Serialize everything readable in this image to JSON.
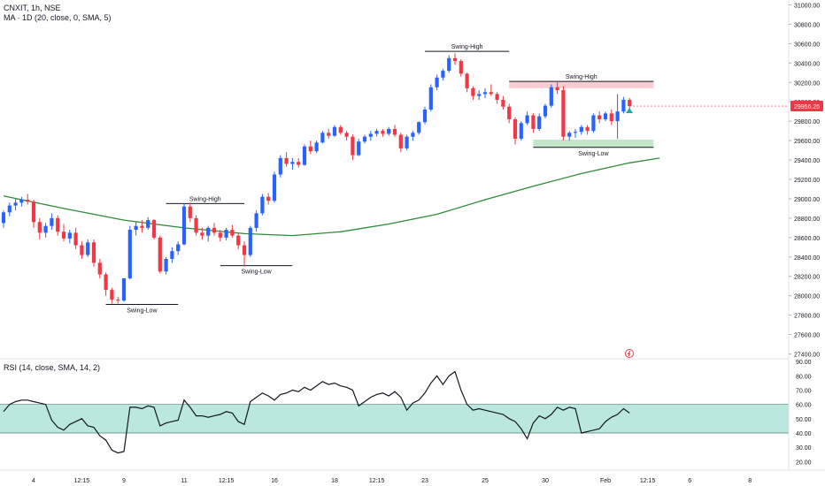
{
  "header": {
    "symbol_line": "CNXIT, 1h, NSE",
    "ma_line": "MA · 1D (20, close, 0, SMA, 5)",
    "rsi_line": "RSI (14, close, SMA, 14, 2)"
  },
  "colors": {
    "up": "#2962ff",
    "down": "#f23645",
    "ma": "#2e8b3a",
    "rsi_band": "#b2e6dc",
    "last_price_bg": "#f23645",
    "resistance_zone": "#f7c6cc",
    "support_zone": "#bfe3c4"
  },
  "chart_data": [
    {
      "type": "candlestick",
      "title": "",
      "ylim": [
        27350,
        31050
      ],
      "y_ticks": [
        "31000.00",
        "30800.00",
        "30600.00",
        "30400.00",
        "30200.00",
        "30000.00",
        "29800.00",
        "29600.00",
        "29400.00",
        "29200.00",
        "29000.00",
        "28800.00",
        "28600.00",
        "28400.00",
        "28200.00",
        "28000.00",
        "27800.00",
        "27600.00",
        "27400.00"
      ],
      "x_ticks": [
        {
          "label": "4",
          "i": 5
        },
        {
          "label": "12:15",
          "i": 13
        },
        {
          "label": "9",
          "i": 20
        },
        {
          "label": "11",
          "i": 30
        },
        {
          "label": "12:15",
          "i": 37
        },
        {
          "label": "16",
          "i": 45
        },
        {
          "label": "18",
          "i": 55
        },
        {
          "label": "12:15",
          "i": 62
        },
        {
          "label": "23",
          "i": 70
        },
        {
          "label": "25",
          "i": 80
        },
        {
          "label": "30",
          "i": 90
        },
        {
          "label": "Feb",
          "i": 100
        },
        {
          "label": "12:15",
          "i": 107
        },
        {
          "label": "6",
          "i": 114
        },
        {
          "label": "8",
          "i": 124
        }
      ],
      "last_price": "29956.25",
      "candles": [
        [
          28750,
          28880,
          28700,
          28860
        ],
        [
          28860,
          28960,
          28820,
          28930
        ],
        [
          28930,
          29000,
          28880,
          28960
        ],
        [
          28960,
          29020,
          28920,
          28990
        ],
        [
          28990,
          29050,
          28940,
          28970
        ],
        [
          28970,
          28990,
          28700,
          28760
        ],
        [
          28760,
          28800,
          28580,
          28650
        ],
        [
          28650,
          28750,
          28600,
          28720
        ],
        [
          28720,
          28850,
          28680,
          28800
        ],
        [
          28800,
          28830,
          28620,
          28660
        ],
        [
          28660,
          28740,
          28560,
          28590
        ],
        [
          28590,
          28680,
          28540,
          28650
        ],
        [
          28650,
          28700,
          28480,
          28520
        ],
        [
          28520,
          28560,
          28380,
          28420
        ],
        [
          28420,
          28580,
          28400,
          28550
        ],
        [
          28550,
          28580,
          28300,
          28340
        ],
        [
          28340,
          28380,
          28180,
          28220
        ],
        [
          28220,
          28240,
          28000,
          28060
        ],
        [
          28060,
          28080,
          27920,
          27960
        ],
        [
          27960,
          27990,
          27920,
          27950
        ],
        [
          27950,
          28180,
          27940,
          28180
        ],
        [
          28180,
          28720,
          28170,
          28680
        ],
        [
          28680,
          28760,
          28620,
          28720
        ],
        [
          28720,
          28780,
          28650,
          28700
        ],
        [
          28700,
          28810,
          28680,
          28780
        ],
        [
          28780,
          28790,
          28580,
          28600
        ],
        [
          28600,
          28620,
          28230,
          28250
        ],
        [
          28250,
          28400,
          28220,
          28380
        ],
        [
          28380,
          28500,
          28340,
          28460
        ],
        [
          28460,
          28560,
          28420,
          28530
        ],
        [
          28530,
          28950,
          28520,
          28920
        ],
        [
          28920,
          28960,
          28760,
          28800
        ],
        [
          28800,
          28830,
          28620,
          28650
        ],
        [
          28650,
          28700,
          28580,
          28620
        ],
        [
          28620,
          28720,
          28560,
          28700
        ],
        [
          28700,
          28750,
          28620,
          28650
        ],
        [
          28650,
          28680,
          28560,
          28600
        ],
        [
          28600,
          28700,
          28570,
          28680
        ],
        [
          28680,
          28730,
          28600,
          28620
        ],
        [
          28620,
          28650,
          28480,
          28520
        ],
        [
          28520,
          28560,
          28300,
          28420
        ],
        [
          28420,
          28720,
          28400,
          28700
        ],
        [
          28700,
          28880,
          28660,
          28850
        ],
        [
          28850,
          29050,
          28830,
          29020
        ],
        [
          29020,
          29060,
          28940,
          28980
        ],
        [
          28980,
          29280,
          28960,
          29250
        ],
        [
          29250,
          29450,
          29220,
          29420
        ],
        [
          29420,
          29480,
          29330,
          29360
        ],
        [
          29360,
          29420,
          29300,
          29380
        ],
        [
          29380,
          29420,
          29320,
          29350
        ],
        [
          29350,
          29560,
          29340,
          29540
        ],
        [
          29540,
          29600,
          29460,
          29490
        ],
        [
          29490,
          29600,
          29470,
          29580
        ],
        [
          29580,
          29700,
          29570,
          29680
        ],
        [
          29680,
          29720,
          29620,
          29650
        ],
        [
          29650,
          29760,
          29640,
          29740
        ],
        [
          29740,
          29760,
          29660,
          29680
        ],
        [
          29680,
          29700,
          29600,
          29640
        ],
        [
          29640,
          29660,
          29400,
          29450
        ],
        [
          29450,
          29620,
          29440,
          29590
        ],
        [
          29590,
          29660,
          29570,
          29640
        ],
        [
          29640,
          29700,
          29600,
          29670
        ],
        [
          29670,
          29720,
          29640,
          29700
        ],
        [
          29700,
          29720,
          29640,
          29670
        ],
        [
          29670,
          29740,
          29650,
          29720
        ],
        [
          29720,
          29760,
          29640,
          29660
        ],
        [
          29660,
          29680,
          29480,
          29520
        ],
        [
          29520,
          29660,
          29500,
          29640
        ],
        [
          29640,
          29700,
          29600,
          29680
        ],
        [
          29680,
          29800,
          29660,
          29790
        ],
        [
          29790,
          29950,
          29770,
          29920
        ],
        [
          29920,
          30180,
          29900,
          30150
        ],
        [
          30150,
          30280,
          30120,
          30250
        ],
        [
          30250,
          30340,
          30220,
          30320
        ],
        [
          30320,
          30480,
          30300,
          30450
        ],
        [
          30450,
          30500,
          30380,
          30420
        ],
        [
          30420,
          30440,
          30260,
          30290
        ],
        [
          30290,
          30300,
          30100,
          30140
        ],
        [
          30140,
          30160,
          30020,
          30060
        ],
        [
          30060,
          30120,
          30020,
          30080
        ],
        [
          30080,
          30140,
          30040,
          30100
        ],
        [
          30100,
          30180,
          30060,
          30080
        ],
        [
          30080,
          30100,
          29980,
          30020
        ],
        [
          30020,
          30060,
          29920,
          29950
        ],
        [
          29950,
          29980,
          29780,
          29820
        ],
        [
          29820,
          29840,
          29560,
          29620
        ],
        [
          29620,
          29800,
          29600,
          29780
        ],
        [
          29780,
          29900,
          29760,
          29860
        ],
        [
          29860,
          29880,
          29680,
          29720
        ],
        [
          29720,
          29880,
          29700,
          29850
        ],
        [
          29850,
          29980,
          29830,
          29960
        ],
        [
          29960,
          30180,
          29940,
          30150
        ],
        [
          30150,
          30200,
          30080,
          30120
        ],
        [
          30120,
          30160,
          29600,
          29640
        ],
        [
          29640,
          29700,
          29600,
          29680
        ],
        [
          29680,
          29720,
          29630,
          29690
        ],
        [
          29690,
          29760,
          29660,
          29740
        ],
        [
          29740,
          29760,
          29660,
          29700
        ],
        [
          29700,
          29880,
          29680,
          29860
        ],
        [
          29860,
          29900,
          29780,
          29820
        ],
        [
          29820,
          29900,
          29800,
          29880
        ],
        [
          29880,
          29920,
          29760,
          29800
        ],
        [
          29800,
          30080,
          29620,
          29900
        ],
        [
          29900,
          30050,
          29880,
          30020
        ],
        [
          30020,
          30040,
          29900,
          29956.25
        ]
      ],
      "ma_points": [
        [
          0,
          29030
        ],
        [
          10,
          28900
        ],
        [
          20,
          28780
        ],
        [
          30,
          28700
        ],
        [
          40,
          28640
        ],
        [
          48,
          28620
        ],
        [
          56,
          28660
        ],
        [
          64,
          28740
        ],
        [
          72,
          28840
        ],
        [
          80,
          28990
        ],
        [
          88,
          29130
        ],
        [
          96,
          29260
        ],
        [
          104,
          29370
        ],
        [
          109,
          29420
        ]
      ],
      "annotations": [
        {
          "text": "Swing-High",
          "kind": "high",
          "i0": 70,
          "i1": 84,
          "price": 30520
        },
        {
          "text": "Swing-Low",
          "kind": "low",
          "i0": 17,
          "i1": 29,
          "price": 27910
        },
        {
          "text": "Swing-High",
          "kind": "high",
          "i0": 27,
          "i1": 40,
          "price": 28950
        },
        {
          "text": "Swing-Low",
          "kind": "low",
          "i0": 36,
          "i1": 48,
          "price": 28310
        },
        {
          "text": "Swing-High",
          "kind": "zone_high",
          "i0": 84,
          "i1": 108,
          "price": 30210,
          "price2": 30140
        },
        {
          "text": "Swing-Low",
          "kind": "zone_low",
          "i0": 88,
          "i1": 108,
          "price": 29610,
          "price2": 29530
        }
      ]
    },
    {
      "type": "line",
      "title": "",
      "ylim": [
        14,
        92
      ],
      "y_ticks": [
        "90.00",
        "80.00",
        "70.00",
        "60.00",
        "50.00",
        "40.00",
        "30.00",
        "20.00"
      ],
      "band": [
        40,
        60
      ],
      "values": [
        55,
        60,
        62,
        63,
        63,
        62,
        61,
        60,
        49,
        44,
        42,
        46,
        48,
        50,
        45,
        44,
        38,
        35,
        28,
        26,
        27,
        58,
        58,
        57,
        59,
        58,
        45,
        47,
        48,
        49,
        63,
        58,
        52,
        52,
        51,
        52,
        53,
        55,
        54,
        48,
        46,
        62,
        65,
        68,
        66,
        63,
        67,
        68,
        70,
        69,
        72,
        70,
        73,
        76,
        74,
        75,
        73,
        72,
        70,
        59,
        62,
        65,
        67,
        68,
        66,
        69,
        65,
        56,
        61,
        63,
        68,
        75,
        80,
        74,
        80,
        83,
        70,
        60,
        56,
        57,
        56,
        55,
        54,
        53,
        50,
        48,
        43,
        36,
        47,
        52,
        50,
        53,
        58,
        56,
        58,
        57,
        40,
        41,
        42,
        43,
        48,
        51,
        53,
        57,
        54
      ]
    }
  ]
}
